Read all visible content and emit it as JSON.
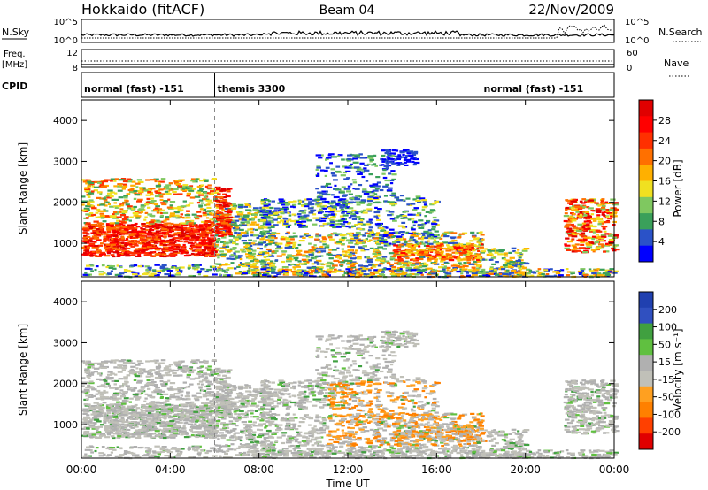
{
  "header": {
    "title_left": "Hokkaido (fitACF)",
    "title_center": "Beam 04",
    "title_right": "22/Nov/2009"
  },
  "top_panels": {
    "nsky_label": "N.Sky",
    "nsearch_label": "N.Search",
    "nsky_ticks": [
      "10^5",
      "10^0"
    ],
    "nsearch_ticks": [
      "10^5",
      "10^0"
    ],
    "freq_label_1": "Freq.",
    "freq_label_2": "[MHz]",
    "freq_ticks": [
      "12",
      "8"
    ],
    "nave_label": "Nave",
    "nave_ticks": [
      "60",
      "0"
    ],
    "cpid_label": "CPID",
    "cpid_segments": [
      {
        "label": "normal (fast) -151",
        "start_hour": 0,
        "end_hour": 6
      },
      {
        "label": "themis 3300",
        "start_hour": 6,
        "end_hour": 18
      },
      {
        "label": "normal (fast) -151",
        "start_hour": 18,
        "end_hour": 24
      }
    ]
  },
  "colors": {
    "power_scale": [
      "#0000ff",
      "#2a52c8",
      "#3aa05a",
      "#7fc860",
      "#f0e020",
      "#ffb000",
      "#ff7000",
      "#ff3000",
      "#ff0000",
      "#e00000"
    ],
    "velocity_scale": [
      "#e00000",
      "#ff4000",
      "#ff8000",
      "#ffa020",
      "#c0c0b8",
      "#b0b0b0",
      "#60c040",
      "#40a040",
      "#3050c0",
      "#2040b0"
    ]
  },
  "chart_data": [
    {
      "type": "heatmap",
      "name": "power",
      "ylabel": "Slant Range [km]",
      "xlabel": "Time UT",
      "x_ticks": [
        "00:00",
        "04:00",
        "08:00",
        "12:00",
        "16:00",
        "20:00",
        "00:00"
      ],
      "y_ticks": [
        "1000",
        "2000",
        "3000",
        "4000"
      ],
      "xlim_hours": [
        0,
        24
      ],
      "ylim_km": [
        180,
        4500
      ],
      "colorbar_label": "Power [dB]",
      "colorbar_ticks": [
        "28",
        "24",
        "20",
        "16",
        "12",
        "8",
        "4"
      ],
      "colorbar_range": [
        0,
        30
      ]
    },
    {
      "type": "heatmap",
      "name": "velocity",
      "ylabel": "Slant Range [km]",
      "xlabel": "Time UT",
      "x_ticks": [
        "00:00",
        "04:00",
        "08:00",
        "12:00",
        "16:00",
        "20:00",
        "00:00"
      ],
      "y_ticks": [
        "1000",
        "2000",
        "3000",
        "4000"
      ],
      "xlim_hours": [
        0,
        24
      ],
      "ylim_km": [
        180,
        4500
      ],
      "colorbar_label": "Velocity [m s⁻¹]",
      "colorbar_ticks": [
        "200",
        "100",
        "50",
        "15",
        "-15",
        "-50",
        "-100",
        "-200"
      ],
      "colorbar_range": [
        -250,
        250
      ]
    }
  ],
  "axes": {
    "x_title": "Time UT"
  }
}
